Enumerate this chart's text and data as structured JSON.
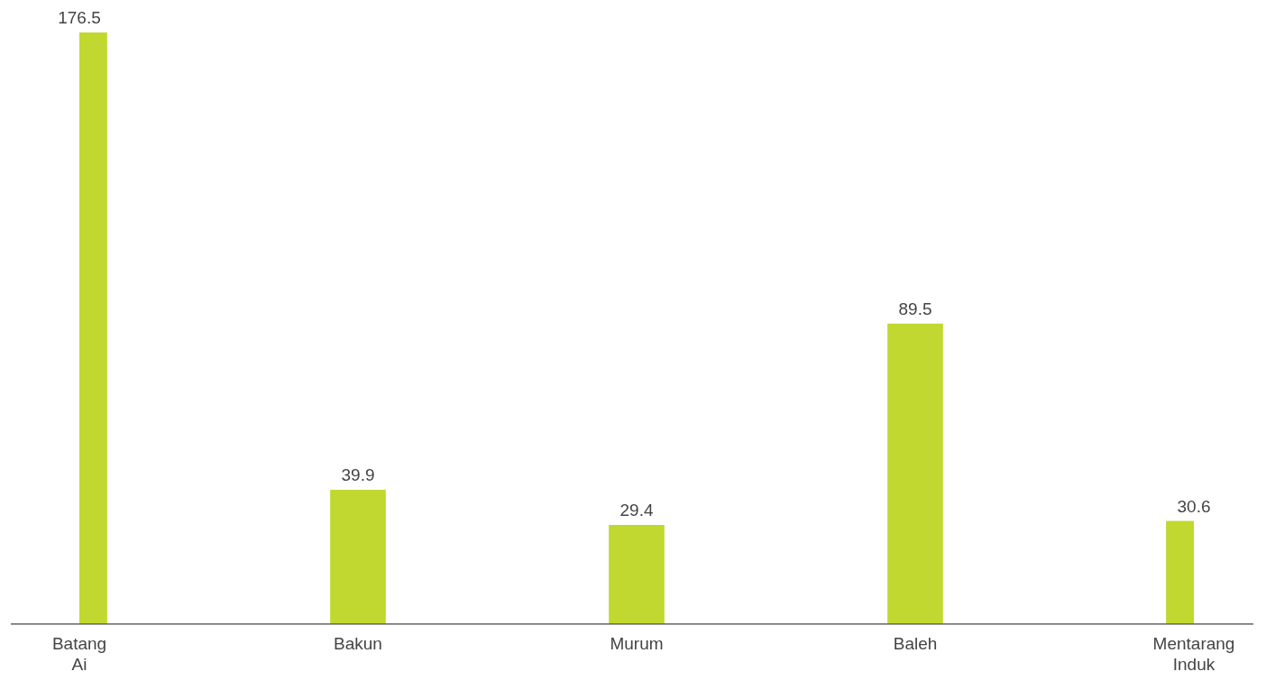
{
  "chart_data": {
    "type": "bar",
    "categories": [
      "Batang Ai",
      "Bakun",
      "Murum",
      "Baleh",
      "Mentarang Induk"
    ],
    "values": [
      176.5,
      39.9,
      29.4,
      89.5,
      30.6
    ],
    "color": "#c0d82f",
    "data_labels": true,
    "grid": false,
    "legend": false
  }
}
